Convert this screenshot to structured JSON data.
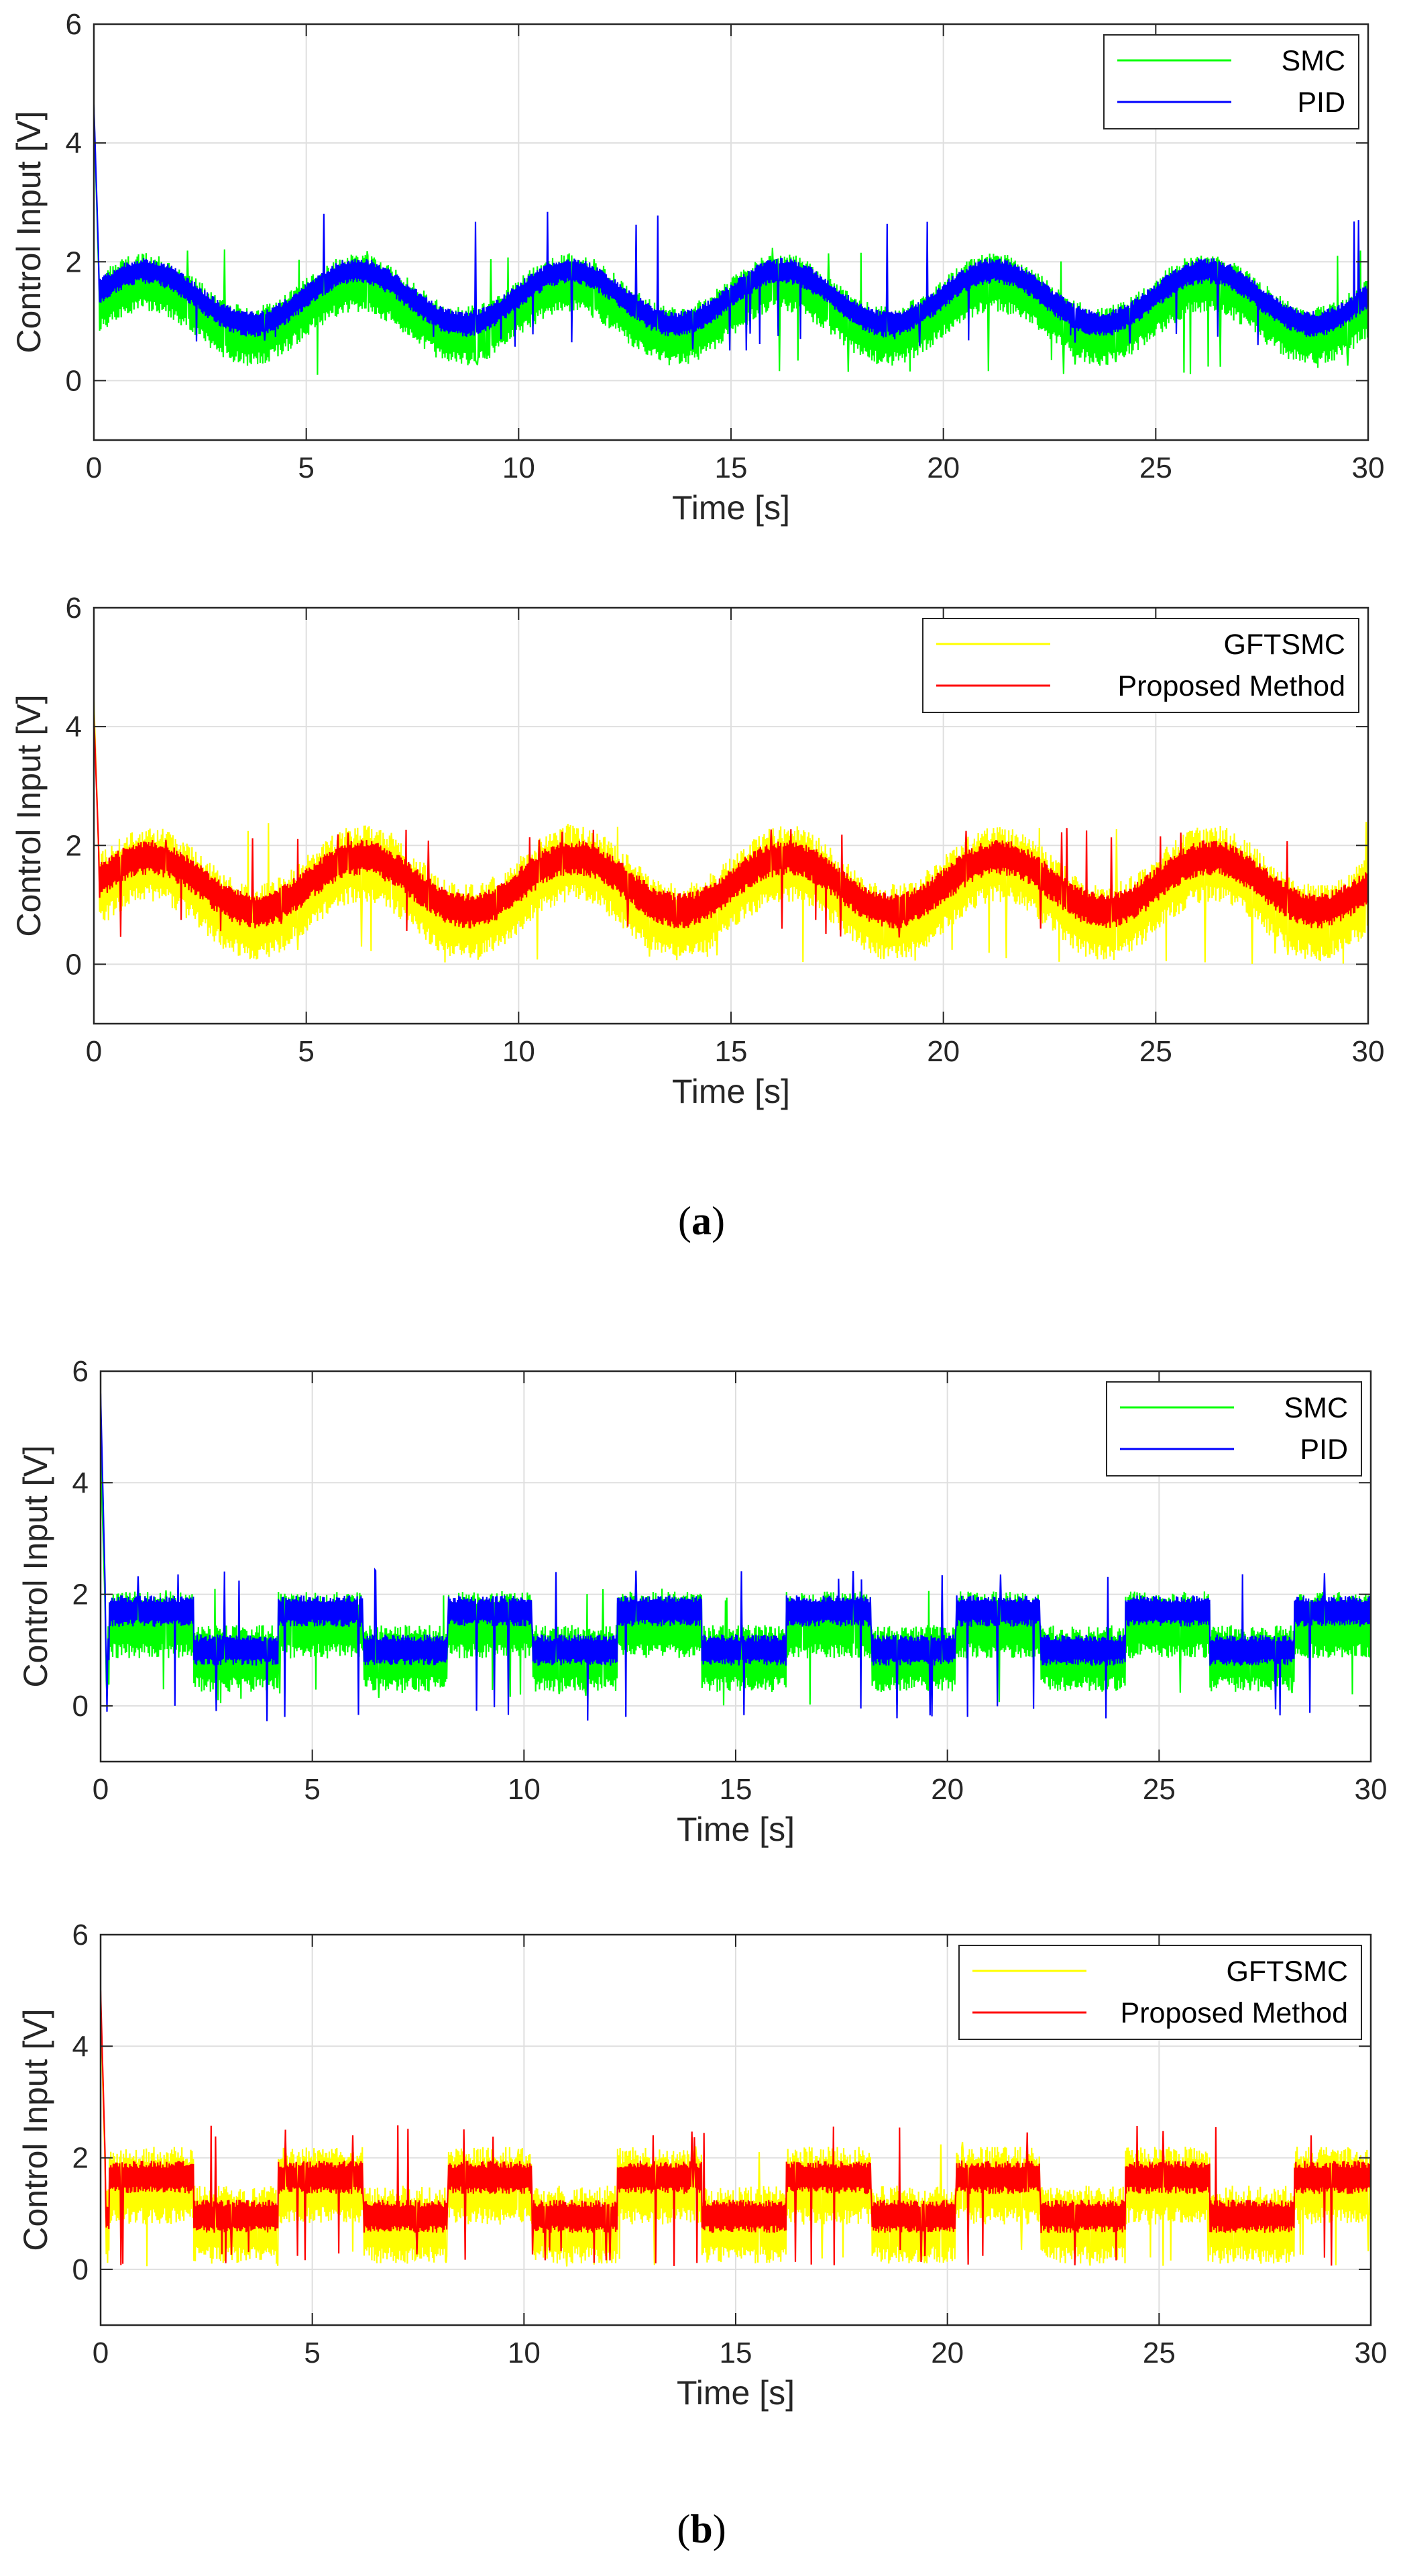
{
  "figure": {
    "captions": [
      {
        "open": "(",
        "letter": "a",
        "close": ")"
      },
      {
        "open": "(",
        "letter": "b",
        "close": ")"
      }
    ]
  },
  "chart_data": [
    {
      "type": "line",
      "panel": "a-top",
      "xlabel": "Time [s]",
      "ylabel": "Control Input [V]",
      "xlim": [
        0,
        30
      ],
      "ylim": [
        -1,
        6
      ],
      "xticks": [
        0,
        5,
        10,
        15,
        20,
        25,
        30
      ],
      "yticks": [
        0,
        2,
        4,
        6
      ],
      "grid": true,
      "legend": "top-right",
      "signal": {
        "kind": "sine",
        "period": 5,
        "peak_t": 1.2
      },
      "series": [
        {
          "name": "SMC",
          "color": "#00ff00",
          "center": 1.2,
          "amplitude": 0.45,
          "band": 0.5,
          "spike_low": 0.08,
          "spike_high": 2.25,
          "initial_peak": 4.6
        },
        {
          "name": "PID",
          "color": "#0000ff",
          "center": 1.4,
          "amplitude": 0.45,
          "band": 0.22,
          "spike_low": 0.5,
          "spike_high": 2.85,
          "initial_peak": 4.65
        }
      ]
    },
    {
      "type": "line",
      "panel": "a-bottom",
      "xlabel": "Time [s]",
      "ylabel": "Control Input [V]",
      "xlim": [
        0,
        30
      ],
      "ylim": [
        -1,
        6
      ],
      "xticks": [
        0,
        5,
        10,
        15,
        20,
        25,
        30
      ],
      "yticks": [
        0,
        2,
        4,
        6
      ],
      "grid": true,
      "legend": "top-right",
      "signal": {
        "kind": "sine",
        "period": 5,
        "peak_t": 1.3
      },
      "series": [
        {
          "name": "GFTSMC",
          "color": "#ffff00",
          "center": 1.2,
          "amplitude": 0.5,
          "band": 0.65,
          "spike_low": 0.0,
          "spike_high": 2.45,
          "initial_peak": 4.45
        },
        {
          "name": "Proposed Method",
          "color": "#ff0000",
          "center": 1.35,
          "amplitude": 0.45,
          "band": 0.3,
          "spike_low": 0.45,
          "spike_high": 2.3,
          "initial_peak": 4.2
        }
      ]
    },
    {
      "type": "line",
      "panel": "b-top",
      "xlabel": "Time [s]",
      "ylabel": "Control Input [V]",
      "xlim": [
        0,
        30
      ],
      "ylim": [
        -1,
        6
      ],
      "xticks": [
        0,
        5,
        10,
        15,
        20,
        25,
        30
      ],
      "yticks": [
        0,
        2,
        4,
        6
      ],
      "grid": true,
      "legend": "top-right",
      "signal": {
        "kind": "square",
        "period": 4,
        "high_start": 0.2,
        "duty": 0.5
      },
      "series": [
        {
          "name": "SMC",
          "color": "#00ff00",
          "center": 1.15,
          "amplitude": 0.3,
          "band": 0.6,
          "spike_low": 0.0,
          "spike_high": 2.1,
          "initial_peak": 4.6
        },
        {
          "name": "PID",
          "color": "#0000ff",
          "center": 1.35,
          "amplitude": 0.35,
          "band": 0.28,
          "spike_low": -0.3,
          "spike_high": 2.45,
          "initial_peak": 5.6
        }
      ]
    },
    {
      "type": "line",
      "panel": "b-bottom",
      "xlabel": "Time [s]",
      "ylabel": "Control Input [V]",
      "xlim": [
        0,
        30
      ],
      "ylim": [
        -1,
        6
      ],
      "xticks": [
        0,
        5,
        10,
        15,
        20,
        25,
        30
      ],
      "yticks": [
        0,
        2,
        4,
        6
      ],
      "grid": true,
      "legend": "top-right",
      "signal": {
        "kind": "square",
        "period": 4,
        "high_start": 0.2,
        "duty": 0.5
      },
      "series": [
        {
          "name": "GFTSMC",
          "color": "#ffff00",
          "center": 1.15,
          "amplitude": 0.35,
          "band": 0.7,
          "spike_low": 0.05,
          "spike_high": 2.3,
          "initial_peak": 4.7
        },
        {
          "name": "Proposed Method",
          "color": "#ff0000",
          "center": 1.3,
          "amplitude": 0.35,
          "band": 0.3,
          "spike_low": 0.05,
          "spike_high": 2.6,
          "initial_peak": 5.0
        }
      ]
    }
  ]
}
